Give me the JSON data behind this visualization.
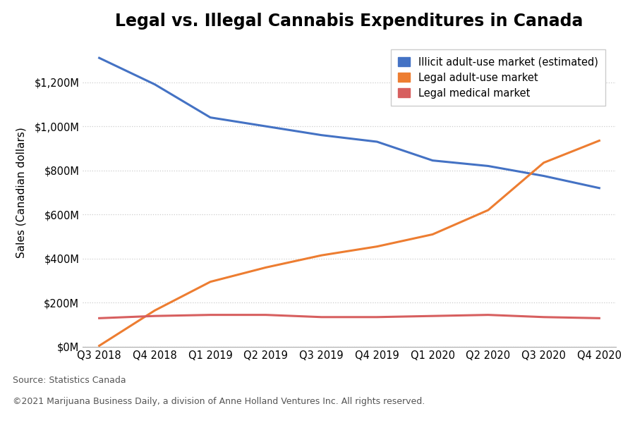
{
  "title": "Legal vs. Illegal Cannabis Expenditures in Canada",
  "ylabel": "Sales (Canadian dollars)",
  "x_labels": [
    "Q3 2018",
    "Q4 2018",
    "Q1 2019",
    "Q2 2019",
    "Q3 2019",
    "Q4 2019",
    "Q1 2020",
    "Q2 2020",
    "Q3 2020",
    "Q4 2020"
  ],
  "illicit": [
    1310,
    1190,
    1040,
    1000,
    960,
    930,
    845,
    820,
    775,
    720
  ],
  "legal_adult": [
    5,
    165,
    295,
    360,
    415,
    455,
    510,
    620,
    835,
    935
  ],
  "legal_medical": [
    130,
    140,
    145,
    145,
    135,
    135,
    140,
    145,
    135,
    130
  ],
  "illicit_color": "#4472C4",
  "legal_adult_color": "#ED7D31",
  "legal_medical_color": "#D75F5F",
  "illicit_label": "Illicit adult-use market (estimated)",
  "legal_adult_label": "Legal adult-use market",
  "legal_medical_label": "Legal medical market",
  "ylim": [
    0,
    1400
  ],
  "yticks": [
    0,
    200,
    400,
    600,
    800,
    1000,
    1200
  ],
  "line_width": 2.2,
  "source_text": "Source: Statistics Canada",
  "copyright_text": "©2021 Marijuana Business Daily, a division of Anne Holland Ventures Inc. All rights reserved.",
  "background_color": "#FFFFFF",
  "grid_color": "#CCCCCC",
  "title_fontsize": 17,
  "axis_label_fontsize": 11,
  "tick_fontsize": 10.5,
  "legend_fontsize": 10.5,
  "source_fontsize": 9
}
